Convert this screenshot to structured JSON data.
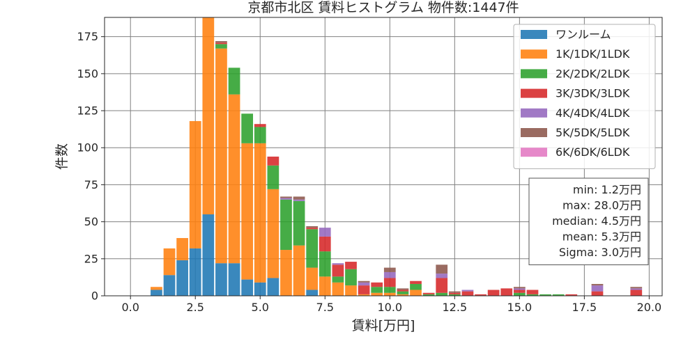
{
  "chart_data": {
    "type": "bar",
    "stacked": true,
    "title": "京都市北区 賃料ヒストグラム 物件数:1447件",
    "xlabel": "賃料[万円]",
    "ylabel": "件数",
    "xlim": [
      -1.0,
      20.5
    ],
    "ylim": [
      0,
      188
    ],
    "xticks": [
      0.0,
      2.5,
      5.0,
      7.5,
      10.0,
      12.5,
      15.0,
      17.5,
      20.0
    ],
    "xtick_labels": [
      "0.0",
      "2.5",
      "5.0",
      "7.5",
      "10.0",
      "12.5",
      "15.0",
      "17.5",
      "20.0"
    ],
    "yticks": [
      0,
      25,
      50,
      75,
      100,
      125,
      150,
      175
    ],
    "ytick_labels": [
      "0",
      "25",
      "50",
      "75",
      "100",
      "125",
      "150",
      "175"
    ],
    "grid": true,
    "legend_position": "top-right",
    "bin_width": 0.5,
    "bin_centers": [
      1.0,
      1.5,
      2.0,
      2.5,
      3.0,
      3.5,
      4.0,
      4.5,
      5.0,
      5.5,
      6.0,
      6.5,
      7.0,
      7.5,
      8.0,
      8.5,
      9.0,
      9.5,
      10.0,
      10.5,
      11.0,
      11.5,
      12.0,
      12.5,
      13.0,
      13.5,
      14.0,
      14.5,
      15.0,
      15.5,
      16.0,
      16.5,
      17.0,
      17.5,
      18.0,
      18.5,
      19.0,
      19.5
    ],
    "series": [
      {
        "name": "ワンルーム",
        "color": "#1f77b4",
        "values": [
          4,
          14,
          24,
          32,
          55,
          22,
          22,
          11,
          9,
          12,
          0,
          0,
          4,
          0,
          0,
          0,
          0,
          0,
          0,
          0,
          0,
          0,
          0,
          0,
          0,
          0,
          0,
          0,
          0,
          0,
          0,
          0,
          0,
          0,
          0,
          0,
          0,
          0
        ]
      },
      {
        "name": "1K/1DK/1LDK",
        "color": "#ff7f0e",
        "values": [
          2,
          18,
          15,
          86,
          133,
          145,
          114,
          92,
          94,
          60,
          31,
          34,
          15,
          13,
          9,
          7,
          1,
          2,
          2,
          1,
          4,
          0,
          0,
          0,
          0,
          0,
          0,
          0,
          0,
          0,
          0,
          0,
          0,
          0,
          0,
          0,
          0,
          0
        ]
      },
      {
        "name": "2K/2DK/2LDK",
        "color": "#2ca02c",
        "values": [
          0,
          0,
          0,
          0,
          0,
          3,
          18,
          20,
          11,
          16,
          34,
          30,
          26,
          17,
          4,
          11,
          0,
          4,
          4,
          2,
          4,
          1,
          2,
          1,
          0,
          0,
          0,
          0,
          2,
          1,
          1,
          1,
          0,
          0,
          0,
          0,
          0,
          0
        ]
      },
      {
        "name": "3K/3DK/3LDK",
        "color": "#d62728",
        "values": [
          0,
          0,
          0,
          0,
          0,
          1,
          0,
          0,
          2,
          6,
          0,
          0,
          1,
          10,
          8,
          5,
          6,
          3,
          6,
          1,
          2,
          1,
          10,
          1,
          3,
          1,
          4,
          5,
          2,
          3,
          0,
          0,
          1,
          0,
          3,
          0,
          0,
          4
        ]
      },
      {
        "name": "4K/4DK/4LDK",
        "color": "#9467bd",
        "values": [
          0,
          0,
          0,
          0,
          0,
          0,
          0,
          0,
          0,
          0,
          1,
          1,
          0,
          6,
          1,
          0,
          2,
          0,
          4,
          0,
          0,
          0,
          3,
          0,
          1,
          0,
          0,
          0,
          1,
          0,
          0,
          0,
          0,
          0,
          4,
          0,
          0,
          1
        ]
      },
      {
        "name": "5K/5DK/5LDK",
        "color": "#8c564b",
        "values": [
          0,
          0,
          0,
          0,
          0,
          1,
          0,
          0,
          0,
          0,
          1,
          2,
          1,
          0,
          0,
          0,
          1,
          0,
          3,
          1,
          0,
          0,
          6,
          1,
          0,
          0,
          0,
          0,
          1,
          0,
          0,
          0,
          0,
          0,
          1,
          0,
          0,
          1
        ]
      },
      {
        "name": "6K/6DK/6LDK",
        "color": "#e377c2",
        "values": [
          0,
          0,
          0,
          0,
          0,
          0,
          0,
          0,
          0,
          0,
          0,
          0,
          0,
          0,
          0,
          0,
          0,
          0,
          0,
          0,
          0,
          0,
          0,
          0,
          0,
          0,
          0,
          0,
          0,
          0,
          0,
          0,
          0,
          0,
          0,
          0,
          0,
          0
        ]
      }
    ],
    "stats_box": [
      "min: 1.2万円",
      "max: 28.0万円",
      "median: 4.5万円",
      "mean: 5.3万円",
      "Sigma: 3.0万円"
    ]
  }
}
